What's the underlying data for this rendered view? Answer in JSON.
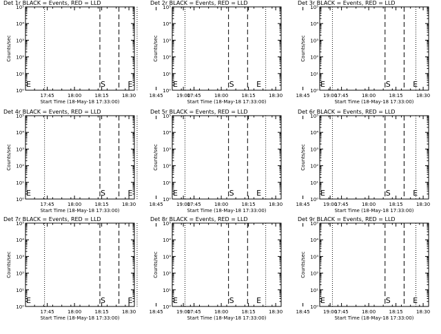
{
  "chart_data": {
    "type": "line",
    "layout": {
      "rows": 3,
      "cols": 3
    },
    "common": {
      "xlabel": "Start Time (18-May-18 17:33:00)",
      "ylabel": "Counts/sec",
      "x_range_min_from_start": [
        0,
        60
      ],
      "x_tick_labels": [
        "17:45",
        "18:00",
        "18:15",
        "18:30",
        "18:45",
        "19:00"
      ],
      "x_tick_minutes": [
        12,
        27,
        42,
        57,
        72,
        87
      ],
      "y_scale": "log",
      "ylim": [
        1,
        100000
      ],
      "y_tick_labels": [
        "10⁰",
        "10¹",
        "10²",
        "10³",
        "10⁴",
        "10⁵"
      ],
      "markers": [
        "S",
        "E"
      ],
      "series_legend": "BLACK = Events, RED = LLD"
    },
    "panels": [
      {
        "title": "Det 1r BLACK = Events, RED = LLD",
        "dotted_min": [
          10.5,
          61.5
        ],
        "dashed_min": [
          41,
          51.5
        ],
        "E_min": 0,
        "S_min": 41,
        "E2_min": 56
      },
      {
        "title": "Det 2r BLACK = Events, RED = LLD",
        "dotted_min": [
          7,
          51.5
        ],
        "dashed_min": [
          31,
          41.5
        ],
        "E_min": 0,
        "S_min": 31,
        "E2_min": 46
      },
      {
        "title": "Det 3r BLACK = Events, RED = LLD",
        "dotted_min": [
          7,
          53
        ],
        "dashed_min": [
          36,
          46.5
        ],
        "E_min": 0,
        "S_min": 36,
        "E2_min": 51
      },
      {
        "title": "Det 4r BLACK = Events, RED = LLD",
        "dotted_min": [
          10.5,
          61.5
        ],
        "dashed_min": [
          41,
          51.5
        ],
        "E_min": 0,
        "S_min": 41,
        "E2_min": 56
      },
      {
        "title": "Det 5r BLACK = Events, RED = LLD",
        "dotted_min": [
          7,
          51.5
        ],
        "dashed_min": [
          31,
          41.5
        ],
        "E_min": 0,
        "S_min": 31,
        "E2_min": 46
      },
      {
        "title": "Det 6r BLACK = Events, RED = LLD",
        "dotted_min": [
          7,
          53
        ],
        "dashed_min": [
          36,
          46.5
        ],
        "E_min": 0,
        "S_min": 36,
        "E2_min": 51
      },
      {
        "title": "Det 7r BLACK = Events, RED = LLD",
        "dotted_min": [
          10.5,
          61.5
        ],
        "dashed_min": [
          41,
          51.5
        ],
        "E_min": 0,
        "S_min": 41,
        "E2_min": 56
      },
      {
        "title": "Det 8r BLACK = Events, RED = LLD",
        "dotted_min": [
          7,
          51.5
        ],
        "dashed_min": [
          31,
          41.5
        ],
        "E_min": 0,
        "S_min": 31,
        "E2_min": 46
      },
      {
        "title": "Det 9r BLACK = Events, RED = LLD",
        "dotted_min": [
          7,
          53
        ],
        "dashed_min": [
          36,
          46.5
        ],
        "E_min": 0,
        "S_min": 36,
        "E2_min": 51
      }
    ]
  }
}
